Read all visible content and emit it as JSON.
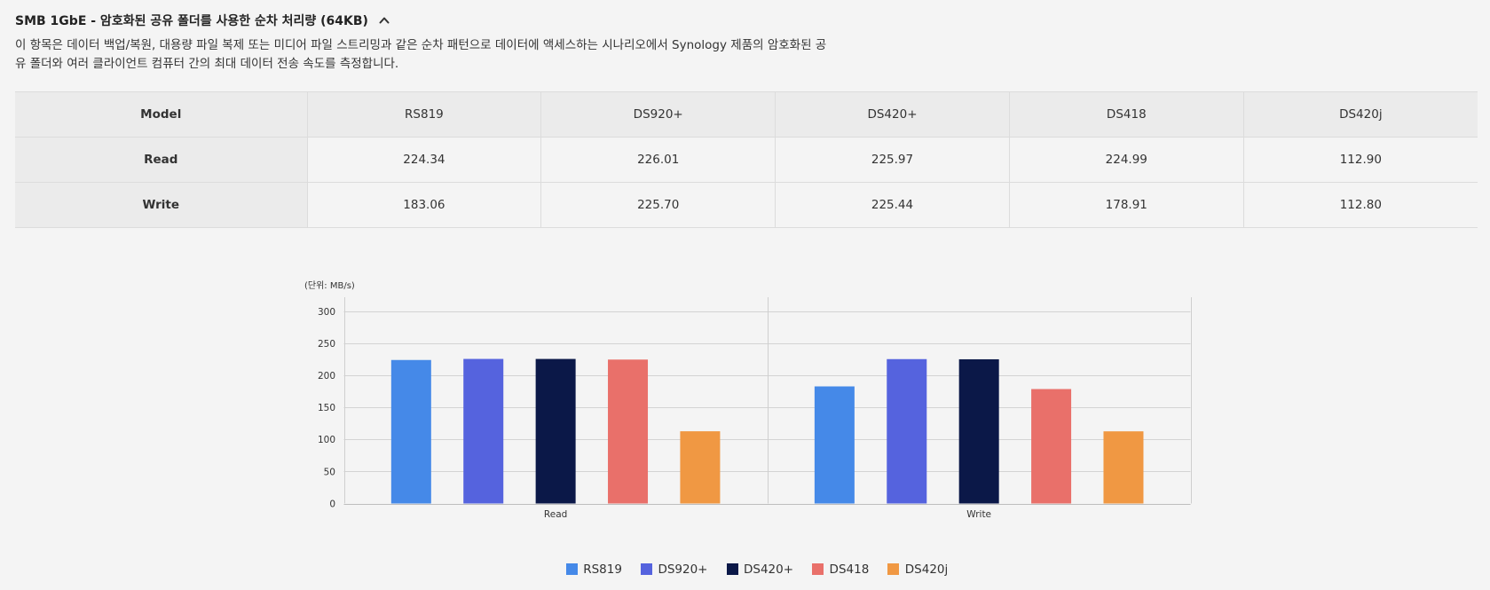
{
  "section": {
    "title": "SMB 1GbE - 암호화된 공유 폴더를 사용한 순차 처리량 (64KB)",
    "toggle_icon": "chevron-up-icon",
    "description_lines": [
      "이 항목은 데이터 백업/복원, 대용량 파일 복제 또는 미디어 파일 스트리밍과 같은 순차 패턴으로 데이터에 액세스하는 시나리오에서 Synology 제품의 암호화된 공",
      "유 폴더와 여러 클라이언트 컴퓨터 간의 최대 데이터 전송 속도를 측정합니다."
    ]
  },
  "table": {
    "header": [
      "Model",
      "RS819",
      "DS920+",
      "DS420+",
      "DS418",
      "DS420j"
    ],
    "rows": [
      {
        "label": "Read",
        "values": [
          "224.34",
          "226.01",
          "225.97",
          "224.99",
          "112.90"
        ]
      },
      {
        "label": "Write",
        "values": [
          "183.06",
          "225.70",
          "225.44",
          "178.91",
          "112.80"
        ]
      }
    ]
  },
  "chart_data": {
    "type": "bar",
    "ylabel": "(단위: MB/s)",
    "categories": [
      "Read",
      "Write"
    ],
    "series": [
      {
        "name": "RS819",
        "values": [
          224.34,
          183.06
        ],
        "color": "#4589E8"
      },
      {
        "name": "DS920+",
        "values": [
          226.01,
          225.7
        ],
        "color": "#5563DE"
      },
      {
        "name": "DS420+",
        "values": [
          225.97,
          225.44
        ],
        "color": "#0B1848"
      },
      {
        "name": "DS418",
        "values": [
          224.99,
          178.91
        ],
        "color": "#E9706A"
      },
      {
        "name": "DS420j",
        "values": [
          112.9,
          112.8
        ],
        "color": "#F09843"
      }
    ],
    "yticks": [
      0,
      50,
      100,
      150,
      200,
      250,
      300
    ],
    "ylim": [
      0,
      300
    ],
    "grid": true,
    "legend": "bottom"
  }
}
